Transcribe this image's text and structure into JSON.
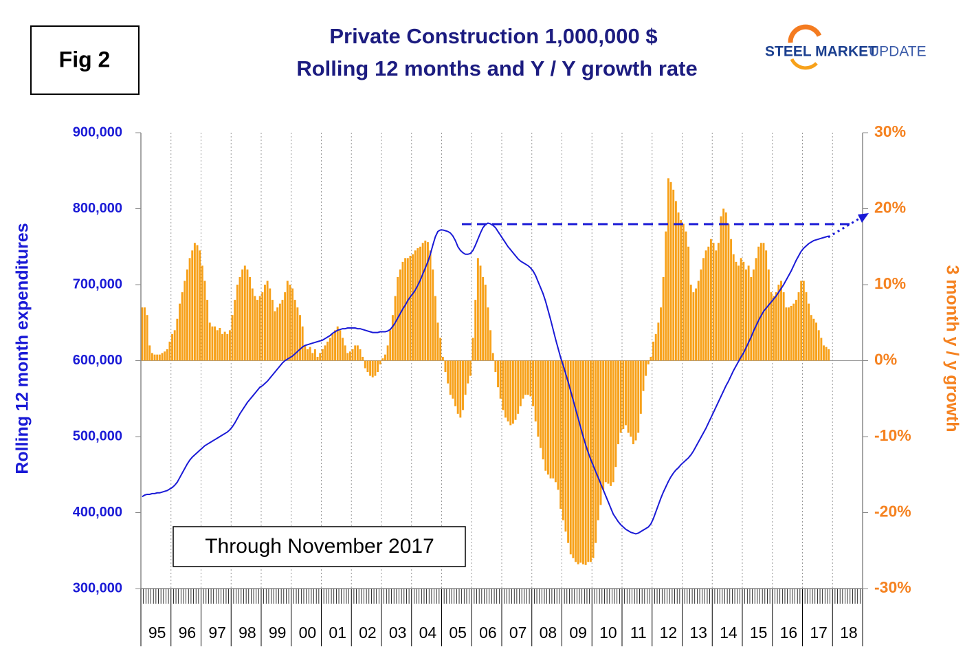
{
  "fig_label": "Fig 2",
  "logo": {
    "bold": "STEEL MARKET",
    "light": "UPDATE"
  },
  "chart_data": {
    "type": "combo",
    "title": "Private Construction 1,000,000 $",
    "subtitle": "Rolling 12 months and Y / Y growth rate",
    "annotation": "Through November 2017",
    "ylabel": "Rolling 12 month expenditures",
    "y2label": "3 month y / y growth",
    "categories": [
      null,
      null,
      null,
      null,
      null,
      null,
      "95",
      null,
      null,
      null,
      null,
      null,
      null,
      null,
      null,
      null,
      null,
      null,
      "96",
      null,
      null,
      null,
      null,
      null,
      null,
      null,
      null,
      null,
      null,
      null,
      "97",
      null,
      null,
      null,
      null,
      null,
      null,
      null,
      null,
      null,
      null,
      null,
      "98",
      null,
      null,
      null,
      null,
      null,
      null,
      null,
      null,
      null,
      null,
      null,
      "99",
      null,
      null,
      null,
      null,
      null,
      null,
      null,
      null,
      null,
      null,
      null,
      "00",
      null,
      null,
      null,
      null,
      null,
      null,
      null,
      null,
      null,
      null,
      null,
      "01",
      null,
      null,
      null,
      null,
      null,
      null,
      null,
      null,
      null,
      null,
      null,
      "02",
      null,
      null,
      null,
      null,
      null,
      null,
      null,
      null,
      null,
      null,
      null,
      "03",
      null,
      null,
      null,
      null,
      null,
      null,
      null,
      null,
      null,
      null,
      null,
      "04",
      null,
      null,
      null,
      null,
      null,
      null,
      null,
      null,
      null,
      null,
      null,
      "05",
      null,
      null,
      null,
      null,
      null,
      null,
      null,
      null,
      null,
      null,
      null,
      "06",
      null,
      null,
      null,
      null,
      null,
      null,
      null,
      null,
      null,
      null,
      null,
      "07",
      null,
      null,
      null,
      null,
      null,
      null,
      null,
      null,
      null,
      null,
      null,
      "08",
      null,
      null,
      null,
      null,
      null,
      null,
      null,
      null,
      null,
      null,
      null,
      "09",
      null,
      null,
      null,
      null,
      null,
      null,
      null,
      null,
      null,
      null,
      null,
      "10",
      null,
      null,
      null,
      null,
      null,
      null,
      null,
      null,
      null,
      null,
      null,
      "11",
      null,
      null,
      null,
      null,
      null,
      null,
      null,
      null,
      null,
      null,
      null,
      "12",
      null,
      null,
      null,
      null,
      null,
      null,
      null,
      null,
      null,
      null,
      null,
      "13",
      null,
      null,
      null,
      null,
      null,
      null,
      null,
      null,
      null,
      null,
      null,
      "14",
      null,
      null,
      null,
      null,
      null,
      null,
      null,
      null,
      null,
      null,
      null,
      "15",
      null,
      null,
      null,
      null,
      null,
      null,
      null,
      null,
      null,
      null,
      null,
      "16",
      null,
      null,
      null,
      null,
      null,
      null,
      null,
      null,
      null,
      null,
      null,
      "17",
      null,
      null,
      null,
      null,
      null,
      null,
      null,
      null,
      null,
      null,
      null,
      "18",
      null,
      null,
      null,
      null,
      null
    ],
    "ylim": [
      300000,
      900000
    ],
    "yticks": [
      {
        "value": 300000,
        "label": "300,000"
      },
      {
        "value": 400000,
        "label": "400,000"
      },
      {
        "value": 500000,
        "label": "500,000"
      },
      {
        "value": 600000,
        "label": "600,000"
      },
      {
        "value": 700000,
        "label": "700,000"
      },
      {
        "value": 800000,
        "label": "800,000"
      },
      {
        "value": 900000,
        "label": "900,000"
      }
    ],
    "y2lim": [
      -30,
      30
    ],
    "y2ticks": [
      {
        "value": -30,
        "label": "-30%"
      },
      {
        "value": -20,
        "label": "-20%"
      },
      {
        "value": -10,
        "label": "-10%"
      },
      {
        "value": 0,
        "label": "0%"
      },
      {
        "value": 10,
        "label": "10%"
      },
      {
        "value": 20,
        "label": "20%"
      },
      {
        "value": 30,
        "label": "30%"
      }
    ],
    "series": [
      {
        "type": "bar",
        "axis": "y2",
        "color": "#f7a11a",
        "values": [
          7,
          7,
          6,
          2,
          1,
          0.8,
          0.8,
          0.8,
          1,
          1.2,
          1.5,
          2.5,
          3.5,
          4,
          5.5,
          7.5,
          9,
          10.5,
          12,
          13.5,
          14.5,
          15.5,
          15.2,
          14.5,
          12.5,
          10.5,
          8,
          5,
          4.5,
          4.5,
          4,
          4.3,
          3.5,
          3.8,
          3.5,
          4,
          6,
          8,
          10,
          11,
          12,
          12.5,
          12,
          11,
          9.5,
          8.5,
          8,
          8.5,
          9,
          10,
          10.5,
          9.5,
          8,
          6.5,
          7,
          7.5,
          8,
          9,
          10.5,
          10,
          9.5,
          8,
          7,
          6,
          4.5,
          2,
          1.5,
          1.8,
          1,
          1.5,
          0.5,
          1,
          1.5,
          2,
          2.5,
          3,
          3.5,
          4,
          4.5,
          4,
          3,
          2,
          1,
          1.2,
          1.5,
          2,
          2,
          1.5,
          0.5,
          -1,
          -1.5,
          -2,
          -2.2,
          -2,
          -1.5,
          -0.5,
          0.3,
          0.8,
          2,
          4,
          6,
          8.5,
          11,
          12,
          13,
          13.5,
          13.5,
          13.8,
          14,
          14.5,
          14.8,
          15,
          15.5,
          15.8,
          15.6,
          14.5,
          12,
          8.5,
          5,
          3,
          0.5,
          -1.5,
          -3,
          -4.5,
          -5,
          -6,
          -7,
          -7.5,
          -6.5,
          -4.5,
          -3,
          -2,
          3,
          8,
          13.5,
          12.5,
          11,
          10,
          7,
          4,
          1,
          -1.5,
          -3.5,
          -5,
          -6.5,
          -7.5,
          -8,
          -8.5,
          -8.3,
          -7.8,
          -7,
          -6,
          -5,
          -4.5,
          -4.5,
          -4.7,
          -6,
          -8,
          -10,
          -11.5,
          -13,
          -14.5,
          -15,
          -15.5,
          -15.5,
          -16,
          -17,
          -19.5,
          -21,
          -22.5,
          -24,
          -25.5,
          -26,
          -26.5,
          -26.8,
          -26.6,
          -26.8,
          -26.9,
          -26.5,
          -26.5,
          -26,
          -24,
          -21,
          -19,
          -17,
          -16,
          -16.2,
          -16.5,
          -16,
          -14,
          -11,
          -9.5,
          -9,
          -8.5,
          -9.5,
          -10,
          -11,
          -10.5,
          -9.5,
          -7,
          -4,
          -2,
          -0.5,
          0.5,
          2.5,
          3.5,
          5,
          7,
          11,
          17,
          24,
          23.5,
          22.5,
          21,
          19.5,
          18.5,
          18,
          17,
          15,
          10,
          9,
          9.5,
          10.5,
          12,
          13.5,
          14.5,
          15,
          16,
          15.5,
          14.5,
          15.5,
          19,
          20,
          19.5,
          18,
          16,
          14,
          13,
          12.5,
          13.5,
          13,
          12,
          12.5,
          11,
          12,
          13.5,
          15,
          15.5,
          15.5,
          14.5,
          12,
          9,
          8.5,
          9,
          10,
          10.5,
          9,
          7,
          7,
          7.2,
          7.5,
          8,
          9,
          10.5,
          10.5,
          9,
          7.5,
          6,
          5.5,
          5,
          4,
          3,
          2,
          1.8,
          1.5,
          null,
          null,
          null,
          null,
          null,
          null,
          null,
          null,
          null,
          null,
          null,
          null,
          null
        ]
      },
      {
        "type": "line",
        "color": "#1a1ad6",
        "values": [
          421000,
          423000,
          424000,
          424000,
          425000,
          425000,
          426000,
          426000,
          427000,
          428000,
          429000,
          431000,
          433000,
          436000,
          440000,
          446000,
          452000,
          458000,
          464000,
          469000,
          473000,
          476000,
          479000,
          482000,
          485000,
          488000,
          490000,
          492000,
          494000,
          496000,
          498000,
          500000,
          502000,
          504000,
          506000,
          509000,
          513000,
          518000,
          524000,
          530000,
          535000,
          540000,
          545000,
          549000,
          553000,
          557000,
          561000,
          565000,
          567000,
          570000,
          573000,
          577000,
          581000,
          585000,
          589000,
          593000,
          597000,
          600000,
          602000,
          604000,
          606000,
          609000,
          612000,
          615000,
          618000,
          620000,
          621000,
          622000,
          623000,
          624000,
          625000,
          626000,
          627000,
          629000,
          631000,
          633000,
          636000,
          638000,
          640000,
          641000,
          642000,
          642000,
          643000,
          643000,
          643000,
          643000,
          642000,
          642000,
          641000,
          640000,
          639000,
          638000,
          637000,
          637000,
          637000,
          638000,
          638000,
          638000,
          639000,
          641000,
          645000,
          650000,
          656000,
          662000,
          668000,
          673000,
          679000,
          684000,
          688000,
          693000,
          699000,
          706000,
          714000,
          722000,
          730000,
          740000,
          752000,
          763000,
          770000,
          772000,
          772000,
          771000,
          770000,
          768000,
          764000,
          758000,
          750000,
          745000,
          742000,
          740000,
          740000,
          741000,
          745000,
          752000,
          760000,
          768000,
          775000,
          779000,
          781000,
          780000,
          778000,
          775000,
          770000,
          765000,
          760000,
          755000,
          750000,
          746000,
          742000,
          738000,
          734000,
          731000,
          729000,
          727000,
          725000,
          722000,
          718000,
          712000,
          704000,
          696000,
          688000,
          678000,
          666000,
          654000,
          641000,
          628000,
          616000,
          604000,
          594000,
          583000,
          572000,
          560000,
          548000,
          536000,
          524000,
          512000,
          500000,
          489000,
          479000,
          470000,
          462000,
          454000,
          446000,
          438000,
          430000,
          422000,
          414000,
          406000,
          398000,
          393000,
          388000,
          384000,
          381000,
          378000,
          376000,
          374000,
          373000,
          372000,
          373000,
          375000,
          377000,
          379000,
          381000,
          385000,
          392000,
          401000,
          410000,
          419000,
          427000,
          434000,
          441000,
          447000,
          452000,
          456000,
          459000,
          463000,
          466000,
          469000,
          472000,
          476000,
          481000,
          487000,
          493000,
          499000,
          505000,
          511000,
          518000,
          525000,
          532000,
          539000,
          546000,
          553000,
          560000,
          567000,
          573000,
          580000,
          587000,
          593000,
          599000,
          605000,
          610000,
          617000,
          624000,
          631000,
          639000,
          646000,
          653000,
          659000,
          665000,
          669000,
          673000,
          677000,
          681000,
          685000,
          690000,
          695000,
          700000,
          706000,
          712000,
          718000,
          725000,
          732000,
          738000,
          744000,
          748000,
          751000,
          754000,
          756000,
          758000,
          759000,
          760000,
          761000,
          762000,
          763000,
          764000,
          null,
          null,
          null,
          null,
          null,
          null,
          null,
          null,
          null,
          null,
          null,
          null,
          null
        ]
      }
    ]
  }
}
